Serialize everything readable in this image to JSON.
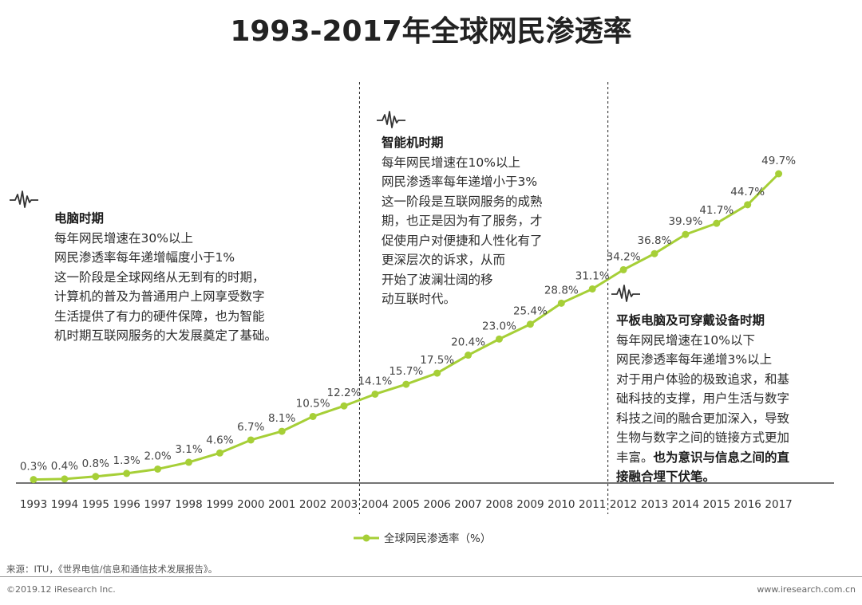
{
  "title": "1993-2017年全球网民渗透率",
  "chart_data": {
    "type": "line",
    "x": [
      "1993",
      "1994",
      "1995",
      "1996",
      "1997",
      "1998",
      "1999",
      "2000",
      "2001",
      "2002",
      "2003",
      "2004",
      "2005",
      "2006",
      "2007",
      "2008",
      "2009",
      "2010",
      "2011",
      "2012",
      "2013",
      "2014",
      "2015",
      "2016",
      "2017"
    ],
    "series": [
      {
        "name": "全球网民渗透率（%）",
        "values": [
          0.3,
          0.4,
          0.8,
          1.3,
          2.0,
          3.1,
          4.6,
          6.7,
          8.1,
          10.5,
          12.2,
          14.1,
          15.7,
          17.5,
          20.4,
          23.0,
          25.4,
          28.8,
          31.1,
          34.2,
          36.8,
          39.9,
          41.7,
          44.7,
          49.7
        ],
        "labels": [
          "0.3%",
          "0.4%",
          "0.8%",
          "1.3%",
          "2.0%",
          "3.1%",
          "4.6%",
          "6.7%",
          "8.1%",
          "10.5%",
          "12.2%",
          "14.1%",
          "15.7%",
          "17.5%",
          "20.4%",
          "23.0%",
          "25.4%",
          "28.8%",
          "31.1%",
          "34.2%",
          "36.8%",
          "39.9%",
          "41.7%",
          "44.7%",
          "49.7%"
        ],
        "color": "#a6cf37"
      }
    ],
    "ylim": [
      0,
      50
    ],
    "grid": false,
    "legend": "bottom-center",
    "dividers_after_years": [
      "2003",
      "2011"
    ]
  },
  "eras": [
    {
      "heading": "电脑时期",
      "lines": [
        "每年网民增速在30%以上",
        "网民渗透率每年递增幅度小于1%",
        "这一阶段是全球网络从无到有的时期，",
        "计算机的普及为普通用户上网享受数字",
        "生活提供了有力的硬件保障，也为智能",
        "机时期互联网服务的大发展奠定了基础。"
      ]
    },
    {
      "heading": "智能机时期",
      "lines": [
        "每年网民增速在10%以上",
        "网民渗透率每年递增小于3%",
        "这一阶段是互联网服务的成熟",
        "期，也正是因为有了服务，才",
        "促使用户对便捷和人性化有了",
        "更深层次的诉求，从而",
        "开始了波澜壮阔的移",
        "动互联时代。"
      ]
    },
    {
      "heading": "平板电脑及可穿戴设备时期",
      "lines": [
        "每年网民增速在10%以下",
        "网民渗透率每年递增3%以上",
        "对于用户体验的极致追求，和基",
        "础科技的支撑，用户生活与数字",
        "科技之间的融合更加深入，导致",
        "生物与数字之间的链接方式更加",
        "丰富。"
      ],
      "bold_tail": [
        "也为意识与信息之间的直",
        "接融合埋下伏笔。"
      ]
    }
  ],
  "source": "来源：ITU，《世界电信/信息和通信技术发展报告》。",
  "copyright": "©2019.12 iResearch Inc.",
  "website": "www.iresearch.com.cn",
  "icon": "pulse-wave-icon"
}
